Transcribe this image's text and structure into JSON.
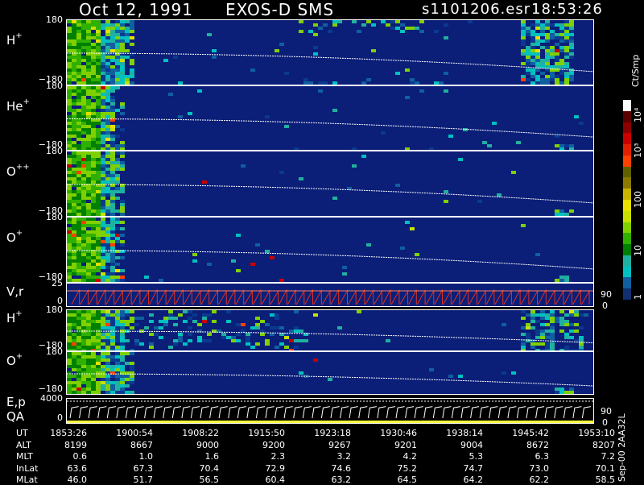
{
  "header": {
    "date": "Oct 12, 1991",
    "instrument": "EXOS-D SMS",
    "file": "s1101206.esr",
    "time": "18:53:26"
  },
  "colorbar": {
    "unit": "Ct/Smp",
    "labels": [
      "10⁴",
      "10³",
      "100",
      "10",
      "1"
    ],
    "colors": [
      "#ffffff",
      "#5a0000",
      "#8c0000",
      "#c80000",
      "#e02000",
      "#ff4000",
      "#606000",
      "#8a7a00",
      "#c8b400",
      "#e8e000",
      "#c8e000",
      "#80d000",
      "#30b000",
      "#008000",
      "#20b0a0",
      "#00c0c0",
      "#1060a0",
      "#103070"
    ]
  },
  "panels": [
    {
      "id": "h-plus-1",
      "label": "H",
      "sup": "+",
      "ymax": "180",
      "ymin": "−180"
    },
    {
      "id": "he-plus",
      "label": "He",
      "sup": "+",
      "ymax": "180",
      "ymin": "−180"
    },
    {
      "id": "o-plus-plus",
      "label": "O",
      "sup": "++",
      "ymax": "180",
      "ymin": "−180"
    },
    {
      "id": "o-plus-1",
      "label": "O",
      "sup": "+",
      "ymax": "180",
      "ymin": "−180"
    },
    {
      "id": "vr",
      "label": "V,r",
      "ymax": "25",
      "ymin": "0",
      "right": "90",
      "right0": "0"
    },
    {
      "id": "h-plus-2",
      "label": "H",
      "sup": "+",
      "ymax": "180",
      "ymin": "−180"
    },
    {
      "id": "o-plus-2",
      "label": "O",
      "sup": "+",
      "ymax": "180",
      "ymin": "−180"
    },
    {
      "id": "ep-qa",
      "label": "E,p",
      "label2": "QA",
      "ymax": "4000",
      "ymin": "0",
      "right": "90",
      "right0": "0"
    }
  ],
  "table": {
    "rows": [
      {
        "name": "UT",
        "values": [
          "1853:26",
          "1900:54",
          "1908:22",
          "1915:50",
          "1923:18",
          "1930:46",
          "1938:14",
          "1945:42",
          "1953:10"
        ]
      },
      {
        "name": "ALT",
        "values": [
          "8199",
          "8667",
          "9000",
          "9200",
          "9267",
          "9201",
          "9004",
          "8672",
          "8207"
        ]
      },
      {
        "name": "MLT",
        "values": [
          "0.6",
          "1.0",
          "1.6",
          "2.3",
          "3.2",
          "4.2",
          "5.3",
          "6.3",
          "7.2"
        ]
      },
      {
        "name": "InLat",
        "values": [
          "63.6",
          "67.3",
          "70.4",
          "72.9",
          "74.6",
          "75.2",
          "74.7",
          "73.0",
          "70.1"
        ]
      },
      {
        "name": "MLat",
        "values": [
          "46.0",
          "51.7",
          "56.5",
          "60.4",
          "63.2",
          "64.5",
          "64.2",
          "62.2",
          "58.5"
        ]
      }
    ]
  },
  "footer": {
    "code": "Sep-00 2AA32L"
  },
  "colors": {
    "background": "#0b1e78",
    "pitch_line": "#ffffff",
    "vr_trace": "#e03020",
    "qa_bar": "#ffff40"
  }
}
